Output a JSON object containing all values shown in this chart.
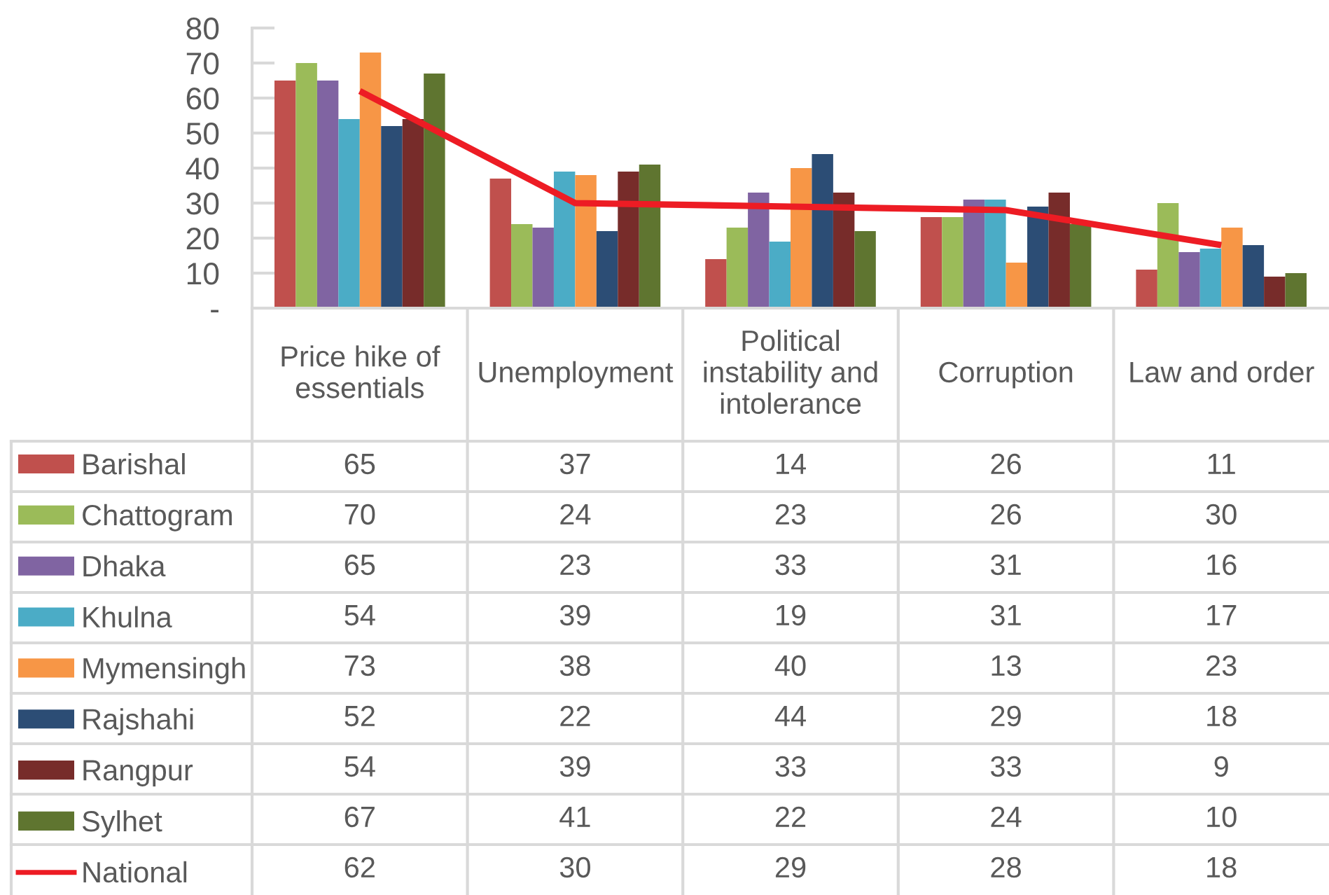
{
  "chart_data": {
    "type": "bar",
    "categories": [
      "Price hike of essentials",
      "Unemployment",
      "Political instability and intolerance",
      "Corruption",
      "Law and order"
    ],
    "series": [
      {
        "name": "Barishal",
        "color": "#c0504d",
        "values": [
          65,
          37,
          14,
          26,
          11
        ]
      },
      {
        "name": "Chattogram",
        "color": "#9bbb59",
        "values": [
          70,
          24,
          23,
          26,
          30
        ]
      },
      {
        "name": "Dhaka",
        "color": "#8064a2",
        "values": [
          65,
          23,
          33,
          31,
          16
        ]
      },
      {
        "name": "Khulna",
        "color": "#4bacc6",
        "values": [
          54,
          39,
          19,
          31,
          17
        ]
      },
      {
        "name": "Mymensingh",
        "color": "#f79646",
        "values": [
          73,
          38,
          40,
          13,
          23
        ]
      },
      {
        "name": "Rajshahi",
        "color": "#2c4d75",
        "values": [
          52,
          22,
          44,
          29,
          18
        ]
      },
      {
        "name": "Rangpur",
        "color": "#772c2a",
        "values": [
          54,
          39,
          33,
          33,
          9
        ]
      },
      {
        "name": "Sylhet",
        "color": "#5f7530",
        "values": [
          67,
          41,
          22,
          24,
          10
        ]
      },
      {
        "name": "National",
        "type": "line",
        "color": "#ed1c24",
        "values": [
          62,
          30,
          29,
          28,
          18
        ]
      }
    ],
    "ylim": [
      0,
      80
    ],
    "yticks": [
      {
        "value": 0,
        "label": "-"
      },
      10,
      20,
      30,
      40,
      50,
      60,
      70,
      80
    ],
    "data_labels": true,
    "legend": "bottom left"
  }
}
